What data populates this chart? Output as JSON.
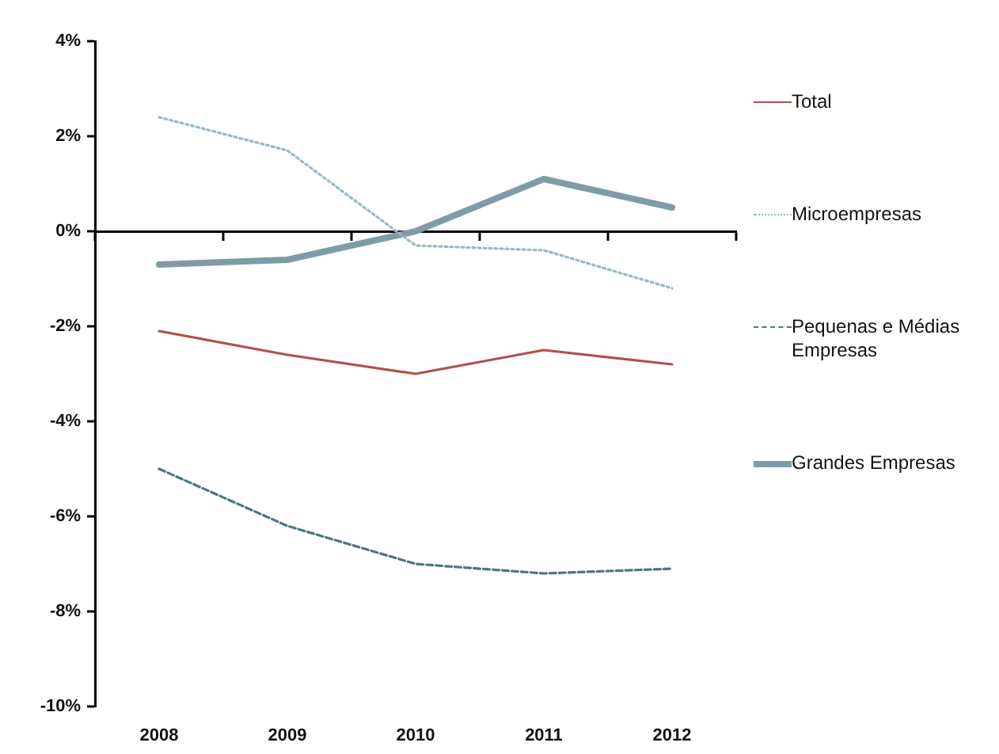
{
  "chart_data": {
    "type": "line",
    "categories": [
      "2008",
      "2009",
      "2010",
      "2011",
      "2012"
    ],
    "series": [
      {
        "name": "Total",
        "color": "#b0504e",
        "line_style": "solid",
        "values": [
          -2.1,
          -2.6,
          -3.0,
          -2.5,
          -2.8
        ]
      },
      {
        "name": "Microempresas",
        "color": "#9ab8c6",
        "line_style": "dotted",
        "values": [
          2.4,
          1.7,
          -0.3,
          -0.4,
          -1.2
        ]
      },
      {
        "name": "Pequenas e Médias Empresas",
        "color": "#4f7480",
        "line_style": "dashed",
        "values": [
          -5.0,
          -6.2,
          -7.0,
          -7.2,
          -7.1
        ]
      },
      {
        "name": "Grandes Empresas",
        "color": "#7f9ca6",
        "line_style": "solid",
        "values": [
          -0.7,
          -0.6,
          0.0,
          1.1,
          0.5
        ]
      }
    ],
    "ylim": [
      -10,
      4
    ],
    "yticks": [
      {
        "value": -10,
        "label": "-10%"
      },
      {
        "value": -8,
        "label": "-8%"
      },
      {
        "value": -6,
        "label": "-6%"
      },
      {
        "value": -4,
        "label": "-4%"
      },
      {
        "value": -2,
        "label": "-2%"
      },
      {
        "value": 0,
        "label": "0%"
      },
      {
        "value": 2,
        "label": "2%"
      },
      {
        "value": 4,
        "label": "4%"
      }
    ],
    "legend": "right",
    "marker": "none"
  }
}
